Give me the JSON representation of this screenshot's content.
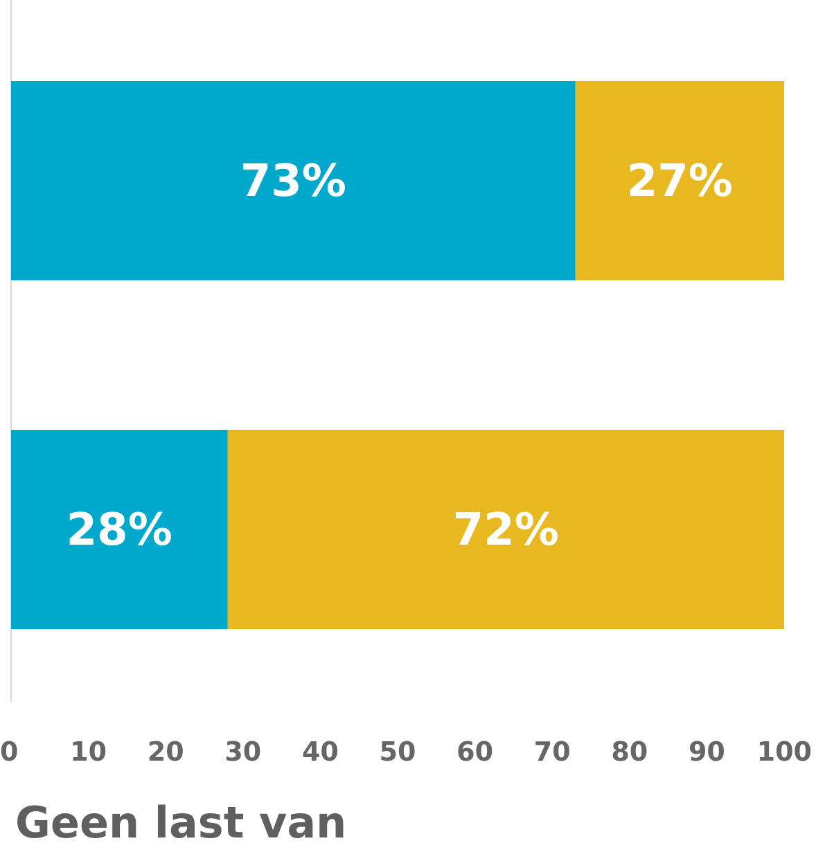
{
  "chart_data": {
    "type": "bar",
    "orientation": "horizontal",
    "stacked": true,
    "categories": [
      "",
      ""
    ],
    "series": [
      {
        "values": [
          73,
          28
        ],
        "color": "#00a8cc",
        "labels": [
          "73%",
          "28%"
        ]
      },
      {
        "values": [
          27,
          72
        ],
        "color": "#e8b820",
        "labels": [
          "27%",
          "72%"
        ]
      }
    ],
    "xlim": [
      0,
      100
    ],
    "x_ticks": [
      "0",
      "10",
      "20",
      "30",
      "40",
      "50",
      "60",
      "70",
      "80",
      "90",
      "100"
    ],
    "grid": false,
    "visible_legend_text": "Geen last van"
  }
}
